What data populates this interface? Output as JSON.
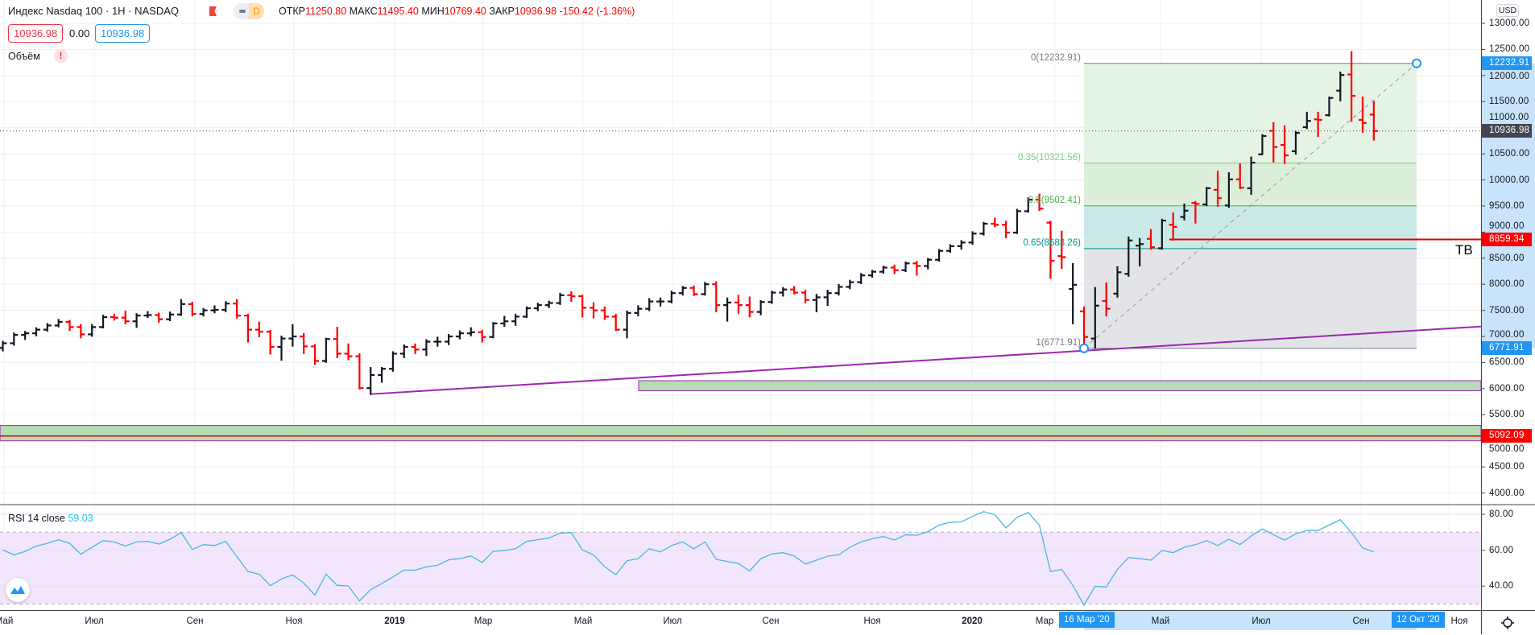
{
  "header": {
    "title": "Индекс Nasdaq 100 · 1Н · NASDAQ",
    "interval_badge": "D",
    "ohlc": {
      "open_label": "ОТКР",
      "open": "11250.80",
      "high_label": "МАКС",
      "high": "11495.40",
      "low_label": "МИН",
      "low": "10769.40",
      "close_label": "ЗАКР",
      "close": "10936.98",
      "change": "-150.42 (-1.36%)"
    },
    "bid": "10936.98",
    "spread": "0.00",
    "ask": "10936.98",
    "volume_label": "Объём",
    "volume_warning": "!"
  },
  "colors": {
    "up": "#131722",
    "down": "#ff0000",
    "accent": "#2196f3",
    "rsi": "#47b8e0",
    "trendline": "#9c27b0"
  },
  "price_axis": {
    "currency": "USD",
    "labels": [
      "13000.00",
      "12500.00",
      "12000.00",
      "11500.00",
      "11000.00",
      "10500.00",
      "10000.00",
      "9500.00",
      "9000.00",
      "8500.00",
      "8000.00",
      "7500.00",
      "7000.00",
      "6500.00",
      "6000.00",
      "5500.00",
      "5000.00",
      "4500.00",
      "4000.00"
    ],
    "tags": [
      {
        "value": "12232.91",
        "color": "#2196f3"
      },
      {
        "value": "10936.98",
        "color": "#434651"
      },
      {
        "value": "8859.34",
        "color": "#ff0000"
      },
      {
        "value": "6771.91",
        "color": "#2196f3"
      },
      {
        "value": "5092.09",
        "color": "#ff0000"
      }
    ]
  },
  "drawings": {
    "fib_levels": [
      {
        "label": "0(12232.91)",
        "value": 12232.91,
        "color": "#787b86"
      },
      {
        "label": "0.35(10321.56)",
        "value": 10321.56,
        "color": "#81c784"
      },
      {
        "label": "0.5(9502.41)",
        "value": 9502.41,
        "color": "#4caf50"
      },
      {
        "label": "0.65(8683.26)",
        "value": 8683.26,
        "color": "#009688"
      },
      {
        "label": "1(6771.91)",
        "value": 6771.91,
        "color": "#787b86"
      }
    ],
    "horizontal_line": {
      "value": 8859.34,
      "text": "ТВ"
    },
    "support_line": {
      "value": 5092.09
    }
  },
  "rsi": {
    "label": "RSI 14 close",
    "value": "59.03",
    "axis_labels": [
      "80.00",
      "60.00",
      "40.00"
    ]
  },
  "time_axis": {
    "labels": [
      "Май",
      "Июл",
      "Сен",
      "Ноя",
      "2019",
      "Мар",
      "Май",
      "Июл",
      "Сен",
      "Ноя",
      "2020",
      "Мар",
      "Май",
      "Июл",
      "Сен",
      "Ноя"
    ],
    "selected_start": "16 Мар '20",
    "selected_end": "12 Окт '20"
  },
  "chart_data": {
    "type": "ohlc",
    "interval": "1W",
    "first_bar_week": "2018-05-07",
    "last_bar_week": "2020-09-14",
    "ylim": [
      4000,
      13000
    ],
    "bars": [
      [
        6780,
        6900,
        6730,
        6870
      ],
      [
        6870,
        7060,
        6840,
        7030
      ],
      [
        7030,
        7090,
        6950,
        7060
      ],
      [
        7060,
        7160,
        7020,
        7130
      ],
      [
        7130,
        7240,
        7110,
        7210
      ],
      [
        7210,
        7320,
        7190,
        7280
      ],
      [
        7280,
        7300,
        7120,
        7180
      ],
      [
        7180,
        7220,
        6980,
        7040
      ],
      [
        7040,
        7220,
        7010,
        7180
      ],
      [
        7180,
        7400,
        7170,
        7370
      ],
      [
        7370,
        7420,
        7320,
        7360
      ],
      [
        7360,
        7480,
        7250,
        7290
      ],
      [
        7290,
        7430,
        7180,
        7400
      ],
      [
        7400,
        7470,
        7370,
        7410
      ],
      [
        7410,
        7440,
        7280,
        7330
      ],
      [
        7330,
        7460,
        7310,
        7420
      ],
      [
        7420,
        7700,
        7410,
        7620
      ],
      [
        7620,
        7650,
        7400,
        7430
      ],
      [
        7430,
        7530,
        7400,
        7500
      ],
      [
        7500,
        7580,
        7460,
        7510
      ],
      [
        7510,
        7660,
        7480,
        7630
      ],
      [
        7630,
        7700,
        7360,
        7400
      ],
      [
        7400,
        7420,
        6900,
        7130
      ],
      [
        7130,
        7270,
        7000,
        7090
      ],
      [
        7090,
        7110,
        6670,
        6800
      ],
      [
        6800,
        7000,
        6550,
        6960
      ],
      [
        6960,
        7220,
        6820,
        7000
      ],
      [
        7000,
        7050,
        6680,
        6810
      ],
      [
        6810,
        6840,
        6470,
        6530
      ],
      [
        6530,
        6960,
        6510,
        6950
      ],
      [
        6950,
        7170,
        6600,
        6670
      ],
      [
        6670,
        6850,
        6560,
        6620
      ],
      [
        6620,
        6660,
        6000,
        6010
      ],
      [
        6010,
        6400,
        5895,
        6260
      ],
      [
        6260,
        6400,
        6130,
        6380
      ],
      [
        6380,
        6700,
        6340,
        6670
      ],
      [
        6670,
        6830,
        6600,
        6800
      ],
      [
        6800,
        6850,
        6680,
        6750
      ],
      [
        6750,
        6930,
        6640,
        6900
      ],
      [
        6900,
        6980,
        6820,
        6900
      ],
      [
        6900,
        7030,
        6850,
        7000
      ],
      [
        7000,
        7100,
        6960,
        7060
      ],
      [
        7060,
        7160,
        7020,
        7080
      ],
      [
        7080,
        7110,
        6900,
        6990
      ],
      [
        6990,
        7260,
        6980,
        7250
      ],
      [
        7250,
        7380,
        7200,
        7290
      ],
      [
        7290,
        7420,
        7220,
        7380
      ],
      [
        7380,
        7560,
        7370,
        7540
      ],
      [
        7540,
        7630,
        7500,
        7600
      ],
      [
        7600,
        7670,
        7560,
        7640
      ],
      [
        7640,
        7820,
        7620,
        7790
      ],
      [
        7790,
        7850,
        7680,
        7770
      ],
      [
        7770,
        7780,
        7380,
        7550
      ],
      [
        7550,
        7640,
        7360,
        7500
      ],
      [
        7500,
        7560,
        7330,
        7380
      ],
      [
        7380,
        7420,
        7120,
        7130
      ],
      [
        7130,
        7480,
        6980,
        7450
      ],
      [
        7450,
        7580,
        7400,
        7530
      ],
      [
        7530,
        7720,
        7500,
        7670
      ],
      [
        7670,
        7730,
        7590,
        7670
      ],
      [
        7670,
        7860,
        7650,
        7830
      ],
      [
        7830,
        7950,
        7800,
        7930
      ],
      [
        7930,
        7960,
        7790,
        7810
      ],
      [
        7810,
        8030,
        7800,
        8000
      ],
      [
        8000,
        8040,
        7480,
        7600
      ],
      [
        7600,
        7730,
        7300,
        7650
      ],
      [
        7650,
        7780,
        7450,
        7600
      ],
      [
        7600,
        7750,
        7380,
        7470
      ],
      [
        7470,
        7680,
        7420,
        7660
      ],
      [
        7660,
        7860,
        7640,
        7840
      ],
      [
        7840,
        7930,
        7780,
        7900
      ],
      [
        7900,
        7950,
        7820,
        7840
      ],
      [
        7840,
        7880,
        7650,
        7700
      ],
      [
        7700,
        7800,
        7480,
        7750
      ],
      [
        7750,
        7880,
        7600,
        7830
      ],
      [
        7830,
        7990,
        7800,
        7950
      ],
      [
        7950,
        8070,
        7920,
        8040
      ],
      [
        8040,
        8200,
        8020,
        8170
      ],
      [
        8170,
        8260,
        8140,
        8240
      ],
      [
        8240,
        8340,
        8220,
        8320
      ],
      [
        8320,
        8360,
        8210,
        8270
      ],
      [
        8270,
        8420,
        8250,
        8400
      ],
      [
        8400,
        8430,
        8180,
        8350
      ],
      [
        8350,
        8490,
        8300,
        8470
      ],
      [
        8470,
        8660,
        8450,
        8640
      ],
      [
        8640,
        8750,
        8620,
        8730
      ],
      [
        8730,
        8830,
        8680,
        8800
      ],
      [
        8800,
        9000,
        8770,
        8970
      ],
      [
        8970,
        9180,
        8950,
        9160
      ],
      [
        9160,
        9260,
        9110,
        9140
      ],
      [
        9140,
        9200,
        8900,
        8990
      ],
      [
        8990,
        9430,
        8980,
        9400
      ],
      [
        9400,
        9650,
        9390,
        9620
      ],
      [
        9620,
        9720,
        9420,
        9450
      ],
      [
        9180,
        9200,
        8120,
        8450
      ],
      [
        8540,
        9010,
        8310,
        8520
      ],
      [
        7910,
        8390,
        7250,
        7990
      ],
      [
        7480,
        7560,
        6771.91,
        6990
      ],
      [
        6960,
        7930,
        6780,
        7590
      ],
      [
        7680,
        8020,
        7400,
        7530
      ],
      [
        7820,
        8330,
        7760,
        8230
      ],
      [
        8200,
        8900,
        8160,
        8840
      ],
      [
        8740,
        8870,
        8360,
        8770
      ],
      [
        8870,
        9040,
        8680,
        8710
      ],
      [
        8690,
        9240,
        8680,
        9220
      ],
      [
        9140,
        9360,
        8850,
        9100
      ],
      [
        9290,
        9530,
        9240,
        9410
      ],
      [
        9560,
        9580,
        9180,
        9540
      ],
      [
        9530,
        9850,
        9510,
        9840
      ],
      [
        9810,
        10160,
        9500,
        9650
      ],
      [
        9510,
        10130,
        9480,
        10010
      ],
      [
        10010,
        10300,
        9840,
        9850
      ],
      [
        9840,
        10430,
        9730,
        10330
      ],
      [
        10490,
        10860,
        10490,
        10840
      ],
      [
        10940,
        11090,
        10350,
        10630
      ],
      [
        10670,
        11030,
        10320,
        10470
      ],
      [
        10550,
        10920,
        10500,
        10900
      ],
      [
        11010,
        11290,
        10990,
        11130
      ],
      [
        11160,
        11290,
        10840,
        11150
      ],
      [
        11240,
        11580,
        11230,
        11570
      ],
      [
        11710,
        12060,
        11520,
        12010
      ],
      [
        12020,
        12450,
        11130,
        11610
      ],
      [
        11150,
        11580,
        10920,
        11090
      ],
      [
        11250.8,
        11495.4,
        10769.4,
        10936.98
      ]
    ],
    "rsi_values": [
      60.1,
      57.4,
      59.3,
      62.3,
      63.8,
      65.8,
      63.8,
      57.8,
      61.6,
      65.3,
      64.6,
      62.3,
      64.6,
      64.9,
      63.4,
      66.1,
      69.8,
      60.4,
      63.1,
      62.6,
      64.9,
      56.4,
      48.1,
      46.6,
      40.2,
      44,
      46.2,
      41.7,
      35,
      46.6,
      40.4,
      40.1,
      31.7,
      38,
      41.4,
      45.1,
      48.9,
      48.9,
      50.7,
      51.6,
      54.6,
      55.3,
      56.8,
      53.1,
      59.3,
      59.8,
      60.8,
      64.9,
      65.8,
      66.8,
      69.5,
      69.8,
      60.1,
      57.4,
      50.8,
      46.3,
      54.1,
      55.3,
      60.8,
      59,
      62.6,
      64.6,
      60.8,
      64.6,
      54.9,
      53.7,
      52.6,
      48.4,
      55.3,
      57.9,
      58.6,
      56.8,
      52.3,
      54.4,
      56.7,
      57.4,
      61.6,
      64.6,
      66.4,
      67.6,
      65.6,
      68.6,
      68.3,
      70.3,
      74,
      75.5,
      75.8,
      78.8,
      81.5,
      79.8,
      72.4,
      78.3,
      81,
      73.9,
      48.1,
      49.3,
      40.4,
      29.4,
      39.9,
      39.5,
      49.3,
      55.9,
      55.3,
      54.4,
      59.8,
      58.6,
      61.6,
      63.1,
      65.3,
      62.6,
      66.1,
      63.1,
      67.9,
      71.8,
      68.6,
      65.6,
      69.1,
      70.9,
      71,
      74,
      77,
      69.8,
      61.3,
      59.03
    ],
    "rsi_bands": [
      30,
      70
    ],
    "rsi_ylim": [
      25,
      85
    ],
    "zones": [
      {
        "from": 5960,
        "to": 6152,
        "start_week": "2019-06-10"
      },
      {
        "from": 5000,
        "to": 5295,
        "start_week": "before-range"
      }
    ],
    "trendline": {
      "from": {
        "week": "2018-12-24",
        "price": 5895
      },
      "to_price_at_axis": 7190
    }
  }
}
